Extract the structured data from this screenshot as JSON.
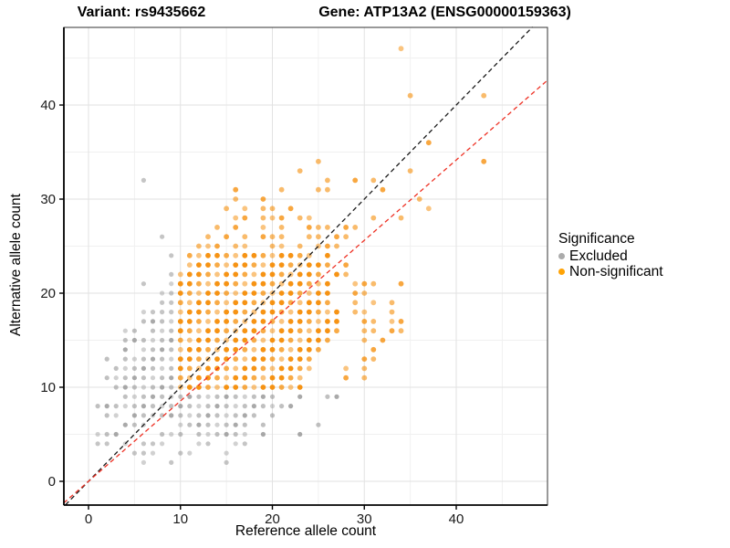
{
  "titles": {
    "left": "Variant: rs9435662",
    "right": "Gene: ATP13A2 (ENSG00000159363)"
  },
  "axes": {
    "x_label": "Reference allele count",
    "y_label": "Alternative allele count",
    "x_ticks": [
      0,
      10,
      20,
      30,
      40
    ],
    "y_ticks": [
      0,
      10,
      20,
      30,
      40
    ]
  },
  "legend": {
    "title": "Significance",
    "items": [
      {
        "label": "Excluded",
        "color": "#ababab"
      },
      {
        "label": "Non-significant",
        "color": "#ffa305"
      }
    ]
  },
  "chart_data": {
    "type": "scatter",
    "title": "Variant: rs9435662 — Gene: ATP13A2 (ENSG00000159363)",
    "xlabel": "Reference allele count",
    "ylabel": "Alternative allele count",
    "xlim": [
      -2.7,
      49.9
    ],
    "ylim": [
      -2.5,
      48.3
    ],
    "grid": "major-and-minor",
    "legend_position": "right",
    "lines": [
      {
        "name": "identity-line",
        "style": "dashed",
        "color": "#1a1a1a",
        "slope": 1.0,
        "intercept": 0
      },
      {
        "name": "expected-ratio-line",
        "style": "dashed",
        "color": "#ee3124",
        "slope": 0.854,
        "intercept": 0
      }
    ],
    "series": [
      {
        "name": "Excluded",
        "color": "#8c8c8c",
        "rows": {
          "2": [
            6,
            9,
            15
          ],
          "3": [
            5,
            6,
            7,
            10,
            11,
            15
          ],
          "4": [
            1,
            2,
            4,
            6,
            7,
            8,
            12,
            13,
            16,
            17
          ],
          "5": [
            1,
            2,
            3,
            8,
            9,
            10,
            12,
            13,
            14,
            15,
            16,
            17,
            19,
            23
          ],
          "6": [
            4,
            5,
            6,
            10,
            11,
            12,
            13,
            14,
            15,
            16,
            17,
            19,
            25
          ],
          "7": [
            2,
            3,
            5,
            6,
            7,
            8,
            9,
            10,
            11,
            12,
            13,
            14,
            15,
            16,
            17,
            18,
            20
          ],
          "8": [
            1,
            2,
            3,
            4,
            5,
            6,
            7,
            8,
            9,
            10,
            11,
            12,
            13,
            14,
            15,
            16,
            17,
            18,
            19,
            20,
            21,
            22
          ],
          "9": [
            4,
            5,
            6,
            7,
            8,
            9,
            10,
            11,
            12,
            13,
            14,
            15,
            16,
            17,
            18,
            19,
            20,
            23,
            26,
            27
          ],
          "10": [
            3,
            4,
            5,
            6,
            7,
            8,
            9
          ],
          "11": [
            2,
            3,
            4,
            5,
            6,
            7,
            8,
            9
          ],
          "12": [
            3,
            4,
            5,
            6,
            7,
            8,
            9
          ],
          "13": [
            2,
            4,
            5,
            6,
            7,
            8,
            9
          ],
          "14": [
            4,
            6,
            7,
            8,
            9
          ],
          "15": [
            4,
            5,
            6,
            7,
            8,
            9
          ],
          "16": [
            4,
            5,
            7,
            8,
            9
          ],
          "17": [
            6,
            7,
            8,
            9
          ],
          "18": [
            6,
            7,
            8,
            9
          ],
          "19": [
            8,
            9
          ],
          "20": [
            8,
            9
          ],
          "21": [
            6,
            9
          ],
          "22": [
            9
          ],
          "24": [
            9
          ],
          "26": [
            8
          ],
          "32": [
            6
          ]
        }
      },
      {
        "name": "Non-significant",
        "color": "#f58a00",
        "rows": {
          "10": [
            10,
            11,
            12,
            13,
            14,
            15,
            16,
            17,
            18,
            19,
            20,
            21,
            22,
            23
          ],
          "11": [
            10,
            11,
            12,
            13,
            14,
            15,
            16,
            17,
            18,
            19,
            20,
            21,
            22,
            23,
            28,
            30
          ],
          "12": [
            10,
            11,
            12,
            13,
            14,
            15,
            16,
            17,
            18,
            19,
            20,
            21,
            22,
            23,
            24,
            28,
            30
          ],
          "13": [
            10,
            11,
            12,
            13,
            14,
            15,
            16,
            17,
            18,
            19,
            20,
            21,
            22,
            23,
            24,
            30,
            31
          ],
          "14": [
            10,
            11,
            12,
            13,
            14,
            15,
            16,
            17,
            18,
            19,
            20,
            21,
            22,
            23,
            24,
            25,
            31
          ],
          "15": [
            10,
            11,
            12,
            13,
            14,
            15,
            16,
            17,
            18,
            19,
            20,
            21,
            22,
            23,
            24,
            25,
            26,
            30,
            32
          ],
          "16": [
            10,
            11,
            12,
            13,
            14,
            15,
            16,
            17,
            18,
            19,
            20,
            21,
            22,
            23,
            24,
            25,
            26,
            27,
            30,
            31,
            33,
            34
          ],
          "17": [
            10,
            11,
            12,
            13,
            14,
            15,
            16,
            17,
            18,
            19,
            20,
            21,
            22,
            23,
            24,
            25,
            26,
            27,
            30,
            31,
            33,
            34
          ],
          "18": [
            10,
            11,
            12,
            13,
            14,
            15,
            16,
            17,
            18,
            19,
            20,
            21,
            22,
            23,
            24,
            25,
            26,
            27,
            29,
            30,
            33
          ],
          "19": [
            10,
            11,
            12,
            13,
            14,
            15,
            16,
            17,
            18,
            19,
            20,
            21,
            22,
            23,
            24,
            25,
            26,
            29,
            31,
            33
          ],
          "20": [
            10,
            11,
            12,
            13,
            14,
            15,
            16,
            17,
            18,
            19,
            20,
            21,
            22,
            23,
            24,
            25,
            26,
            29,
            30
          ],
          "21": [
            10,
            11,
            12,
            13,
            14,
            15,
            16,
            17,
            18,
            19,
            20,
            21,
            22,
            23,
            24,
            25,
            26,
            29,
            30,
            31,
            34
          ],
          "22": [
            10,
            11,
            12,
            13,
            14,
            15,
            16,
            17,
            18,
            19,
            20,
            21,
            22,
            23,
            24,
            25,
            27,
            28
          ],
          "23": [
            11,
            12,
            13,
            14,
            15,
            16,
            17,
            18,
            19,
            20,
            21,
            22,
            23,
            24,
            25,
            26,
            28
          ],
          "24": [
            11,
            12,
            13,
            14,
            15,
            16,
            17,
            18,
            19,
            20,
            21,
            22,
            23,
            24,
            26
          ],
          "25": [
            12,
            13,
            14,
            16,
            17,
            20,
            21,
            23,
            25,
            26,
            27
          ],
          "26": [
            13,
            15,
            17,
            19,
            20,
            21,
            24,
            25,
            27,
            28
          ],
          "27": [
            14,
            16,
            19,
            21,
            24,
            25,
            26,
            28,
            29
          ],
          "28": [
            16,
            17,
            19,
            20,
            21,
            23,
            24,
            31,
            34
          ],
          "29": [
            15,
            17,
            19,
            20,
            22,
            37
          ],
          "30": [
            16,
            19,
            36
          ],
          "31": [
            16,
            21,
            25,
            26,
            32
          ],
          "32": [
            26,
            29,
            31
          ],
          "33": [
            23,
            35
          ],
          "34": [
            25,
            43
          ],
          "36": [
            37
          ],
          "41": [
            35,
            43
          ],
          "46": [
            34
          ]
        }
      }
    ]
  }
}
